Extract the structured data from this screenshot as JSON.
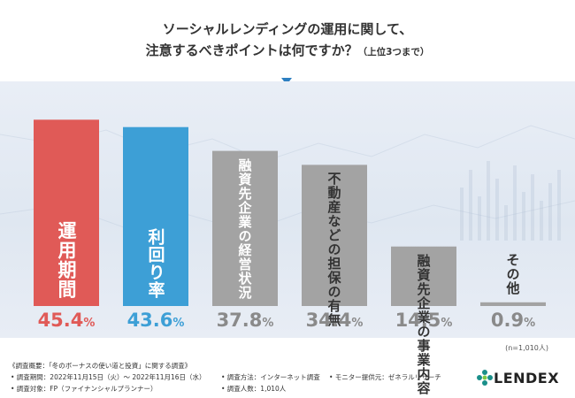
{
  "title": {
    "line1": "ソーシャルレンディングの運用に関して、",
    "line2_main": "注意するべきポイントは何ですか？",
    "line2_sub": "（上位3つまで）"
  },
  "colors": {
    "red": "#e05a57",
    "blue": "#3d9fd6",
    "gray": "#a3a3a3",
    "gray_dark": "#8a8a8a",
    "pointer": "#2d7fc1"
  },
  "chart_data": {
    "type": "bar",
    "categories": [
      "運用期間",
      "利回り率",
      "融資先企業の経営状況",
      "不動産などの担保の有無",
      "融資先企業の事業内容",
      "その他"
    ],
    "values": [
      45.4,
      43.6,
      37.8,
      34.4,
      14.5,
      0.9
    ],
    "value_labels": [
      "45.4",
      "43.6",
      "37.8",
      "34.4",
      "14.5",
      "0.9"
    ],
    "unit": "%",
    "bar_colors": [
      "#e05a57",
      "#3d9fd6",
      "#a3a3a3",
      "#a3a3a3",
      "#a3a3a3",
      "#a3a3a3"
    ],
    "label_colors": [
      "#ffffff",
      "#ffffff",
      "#ffffff",
      "#333333",
      "#333333",
      "#333333"
    ],
    "value_colors": [
      "#e05a57",
      "#3d9fd6",
      "#8a8a8a",
      "#8a8a8a",
      "#8a8a8a",
      "#8a8a8a"
    ],
    "title": "ソーシャルレンディングの運用に関して、注意するべきポイントは何ですか？（上位3つまで）",
    "ylim": [
      0,
      50
    ],
    "grid": false,
    "legend": "none"
  },
  "note": "(n=1,010人)",
  "footer": {
    "overview": "《調査概要：「冬のボーナスの使い道と投資」に関する調査》",
    "period": "• 調査期間：2022年11月15日（火）～ 2022年11月16日（水）",
    "target": "• 調査対象：FP（ファイナンシャルプランナー）",
    "method": "• 調査方法：インターネット調査",
    "count": "• 調査人数：1,010人",
    "provider": "• モニター提供元：ゼネラルリサーチ"
  },
  "logo": {
    "text": "LENDEX",
    "icon": "lendex-logo-icon"
  }
}
